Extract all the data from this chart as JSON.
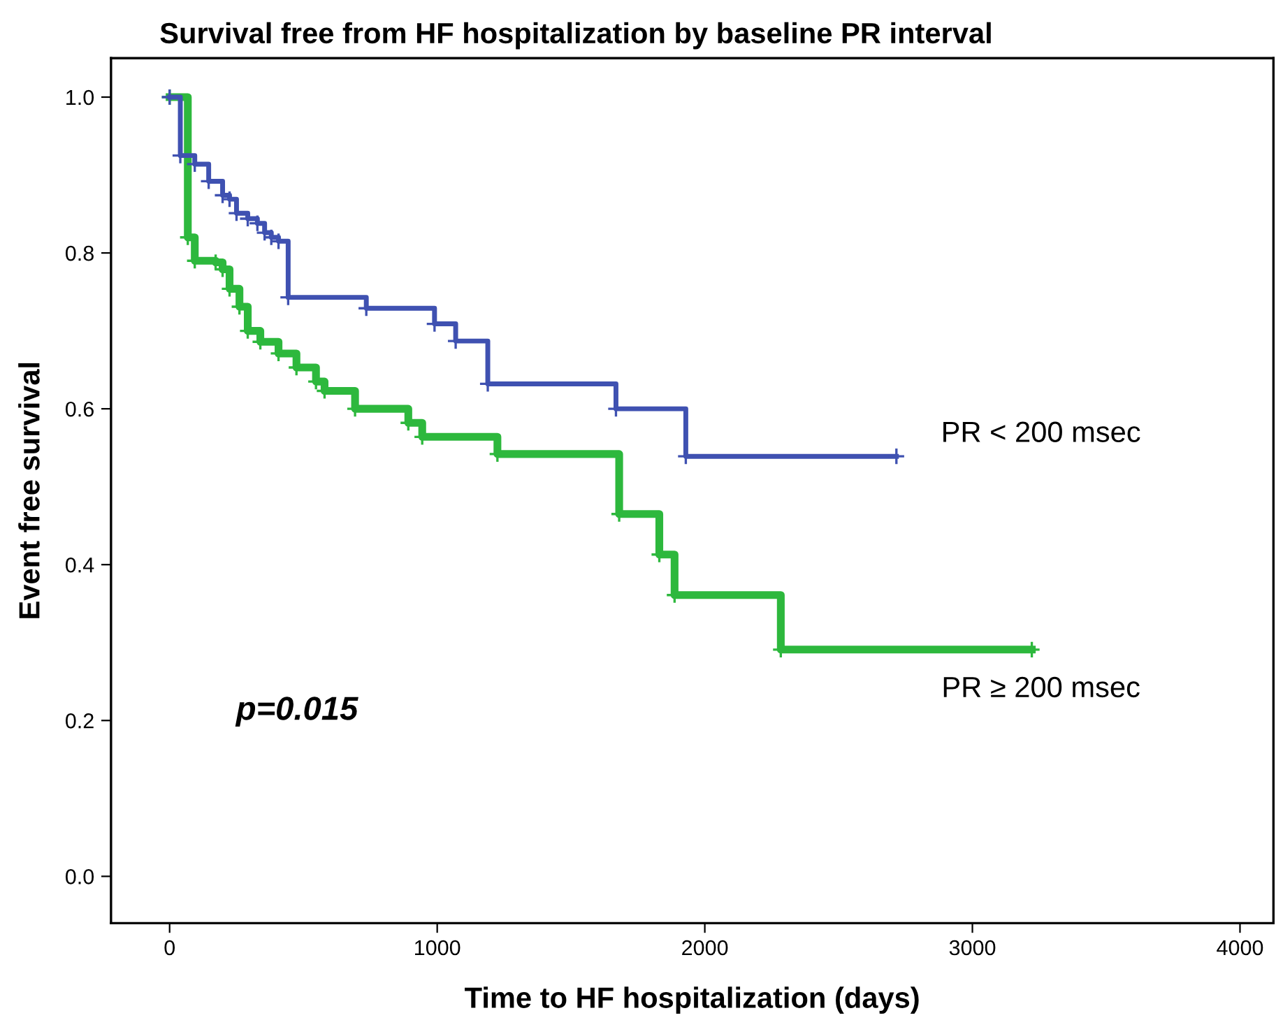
{
  "chart_data": {
    "type": "step",
    "title": "Survival free from HF hospitalization by baseline PR interval",
    "xlabel": "Time to HF hospitalization (days)",
    "ylabel": "Event free survival",
    "annotations": [
      "p=0.015"
    ],
    "marker": "cross",
    "line_style": "solid",
    "grid": false,
    "legend": false,
    "series": [
      {
        "name": "PR < 200 msec",
        "color": "#3f51b1",
        "x": [
          0,
          40,
          94,
          146,
          198,
          224,
          250,
          292,
          328,
          355,
          380,
          407,
          443,
          735,
          990,
          1069,
          1189,
          1668,
          1929,
          2716
        ],
        "values": [
          1.0,
          0.925,
          0.914,
          0.892,
          0.874,
          0.869,
          0.851,
          0.844,
          0.838,
          0.826,
          0.82,
          0.815,
          0.743,
          0.729,
          0.709,
          0.687,
          0.632,
          0.6,
          0.539,
          0.539
        ]
      },
      {
        "name": "PR ≥ 200 msec",
        "color": "#2db83d",
        "x": [
          0,
          68,
          94,
          172,
          198,
          224,
          261,
          292,
          339,
          407,
          474,
          547,
          579,
          693,
          892,
          944,
          1225,
          1680,
          1830,
          1887,
          2284,
          3222
        ],
        "values": [
          1.0,
          0.82,
          0.79,
          0.788,
          0.779,
          0.754,
          0.731,
          0.7,
          0.686,
          0.671,
          0.653,
          0.635,
          0.623,
          0.6,
          0.582,
          0.564,
          0.542,
          0.465,
          0.413,
          0.361,
          0.291,
          0.291
        ]
      }
    ],
    "xlim": [
      -219,
      4125
    ],
    "ylim": [
      -0.06,
      1.05
    ],
    "xticks": [
      0,
      1000,
      2000,
      3000,
      4000
    ],
    "yticks": [
      {
        "value": 0,
        "label": "0.0"
      },
      {
        "value": 0.2,
        "label": "0.2"
      },
      {
        "value": 0.4,
        "label": "0.4"
      },
      {
        "value": 0.6,
        "label": "0.6"
      },
      {
        "value": 0.8,
        "label": "0.8"
      },
      {
        "value": 1.0,
        "label": "1.0"
      }
    ]
  }
}
